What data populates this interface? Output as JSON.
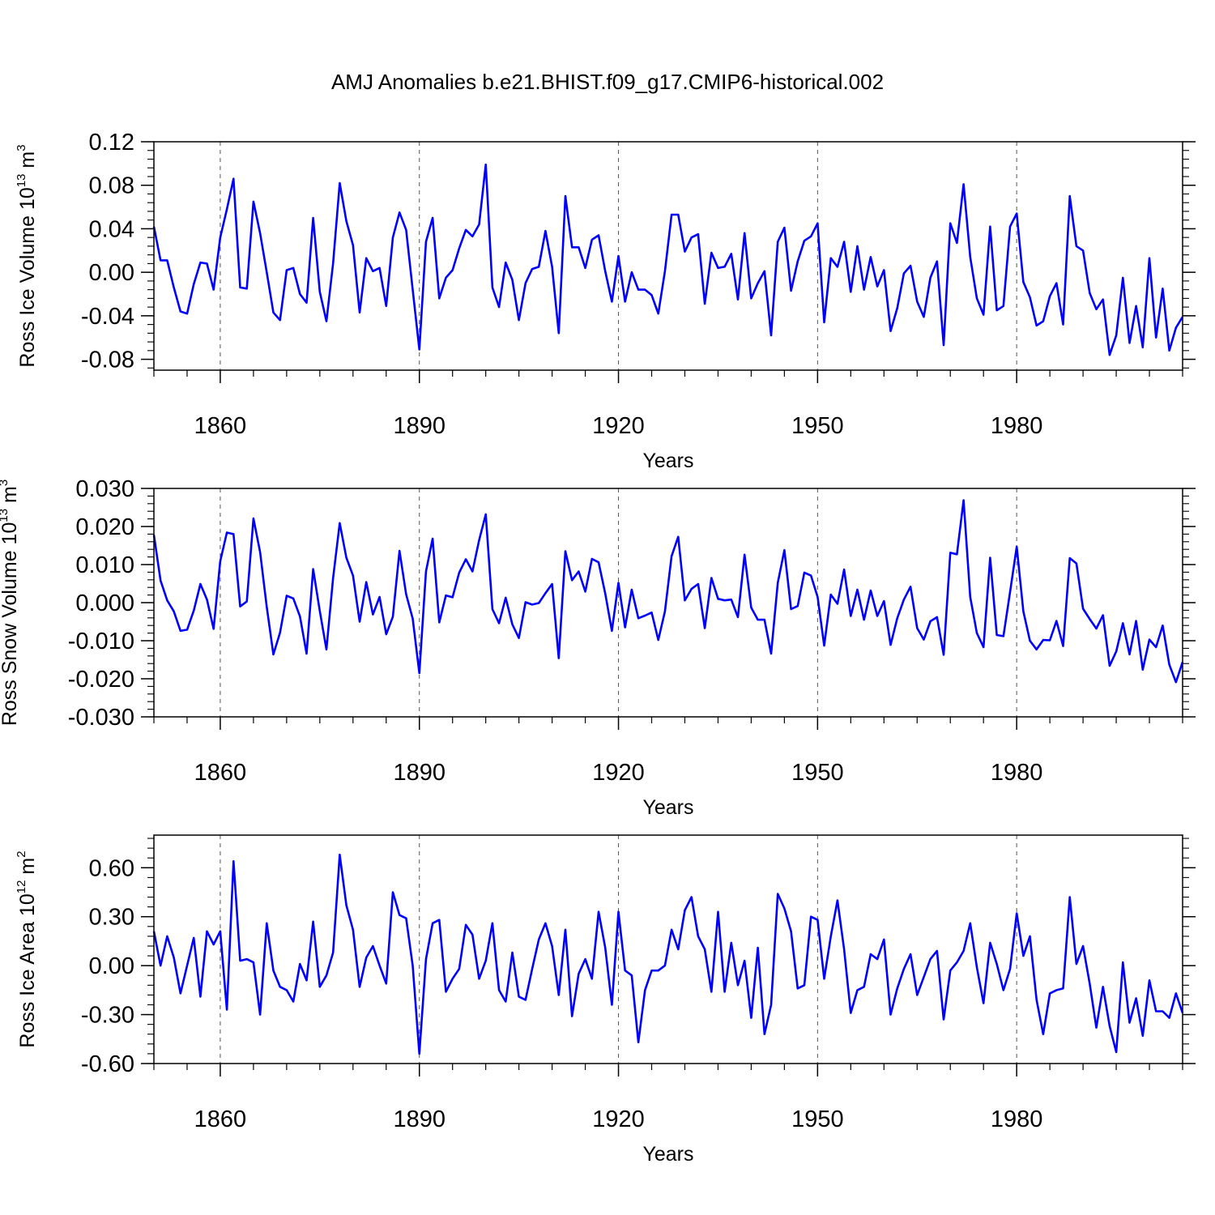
{
  "title": "AMJ Anomalies b.e21.BHIST.f09_g17.CMIP6-historical.002",
  "line_color": "#0000ff",
  "chart_data": [
    {
      "type": "line",
      "title": "AMJ Anomalies b.e21.BHIST.f09_g17.CMIP6-historical.002",
      "xlabel": "Years",
      "ylabel": "Ross Ice Volume",
      "yunit_base": "10",
      "yunit_exp": "13",
      "yunit_sym": "m",
      "yunit_pow": "3",
      "xlim": [
        1850,
        2005
      ],
      "ylim": [
        -0.09,
        0.12
      ],
      "xticks": [
        1860,
        1890,
        1920,
        1950,
        1980
      ],
      "xtick_labels": [
        "1860",
        "1890",
        "1920",
        "1950",
        "1980"
      ],
      "yticks": [
        -0.08,
        -0.04,
        0.0,
        0.04,
        0.08,
        0.12
      ],
      "ytick_labels": [
        "-0.08",
        "-0.04",
        "0.00",
        "0.04",
        "0.08",
        "0.12"
      ],
      "x_start": 1850,
      "values": [
        0.042,
        0.011,
        0.011,
        -0.014,
        -0.036,
        -0.038,
        -0.011,
        0.009,
        0.008,
        -0.016,
        0.032,
        0.058,
        0.086,
        -0.014,
        -0.015,
        0.065,
        0.036,
        0.0,
        -0.037,
        -0.044,
        0.002,
        0.004,
        -0.02,
        -0.028,
        0.05,
        -0.018,
        -0.045,
        0.008,
        0.082,
        0.047,
        0.025,
        -0.037,
        0.013,
        0.001,
        0.004,
        -0.031,
        0.032,
        0.055,
        0.039,
        -0.016,
        -0.071,
        0.028,
        0.05,
        -0.024,
        -0.005,
        0.002,
        0.022,
        0.039,
        0.033,
        0.044,
        0.099,
        -0.014,
        -0.032,
        0.009,
        -0.007,
        -0.044,
        -0.01,
        0.003,
        0.005,
        0.038,
        0.005,
        -0.056,
        0.07,
        0.023,
        0.023,
        0.004,
        0.03,
        0.034,
        0.001,
        -0.027,
        0.015,
        -0.027,
        0.0,
        -0.016,
        -0.016,
        -0.021,
        -0.038,
        0.001,
        0.053,
        0.053,
        0.019,
        0.032,
        0.035,
        -0.029,
        0.018,
        0.004,
        0.005,
        0.017,
        -0.025,
        0.036,
        -0.024,
        -0.01,
        0.001,
        -0.058,
        0.028,
        0.041,
        -0.017,
        0.01,
        0.029,
        0.033,
        0.045,
        -0.046,
        0.013,
        0.005,
        0.028,
        -0.018,
        0.024,
        -0.016,
        0.014,
        -0.013,
        0.002,
        -0.054,
        -0.033,
        -0.001,
        0.006,
        -0.027,
        -0.041,
        -0.005,
        0.01,
        -0.067,
        0.045,
        0.027,
        0.081,
        0.014,
        -0.024,
        -0.039,
        0.042,
        -0.035,
        -0.031,
        0.042,
        0.054,
        -0.009,
        -0.023,
        -0.049,
        -0.045,
        -0.022,
        -0.01,
        -0.048,
        0.07,
        0.024,
        0.02,
        -0.019,
        -0.034,
        -0.025,
        -0.076,
        -0.058,
        -0.005,
        -0.065,
        -0.031,
        -0.069,
        0.013,
        -0.06,
        -0.015,
        -0.072,
        -0.051,
        -0.041
      ]
    },
    {
      "type": "line",
      "xlabel": "Years",
      "ylabel": "Ross Snow Volume",
      "yunit_base": "10",
      "yunit_exp": "13",
      "yunit_sym": "m",
      "yunit_pow": "3",
      "xlim": [
        1850,
        2005
      ],
      "ylim": [
        -0.03,
        0.03
      ],
      "xticks": [
        1860,
        1890,
        1920,
        1950,
        1980
      ],
      "xtick_labels": [
        "1860",
        "1890",
        "1920",
        "1950",
        "1980"
      ],
      "yticks": [
        -0.03,
        -0.02,
        -0.01,
        0.0,
        0.01,
        0.02,
        0.03
      ],
      "ytick_labels": [
        "-0.030",
        "-0.020",
        "-0.010",
        "0.000",
        "0.010",
        "0.020",
        "0.030"
      ],
      "x_start": 1850,
      "values": [
        0.0178,
        0.0058,
        0.0006,
        -0.0023,
        -0.0074,
        -0.0071,
        -0.0021,
        0.0049,
        0.0008,
        -0.0069,
        0.0109,
        0.0184,
        0.018,
        -0.001,
        0.0003,
        0.0221,
        0.0133,
        -0.0011,
        -0.0136,
        -0.0079,
        0.0018,
        0.0011,
        -0.0036,
        -0.0134,
        0.0088,
        -0.0022,
        -0.0123,
        0.0064,
        0.0209,
        0.0118,
        0.0071,
        -0.005,
        0.0054,
        -0.0031,
        0.0015,
        -0.0083,
        -0.0037,
        0.0136,
        0.0022,
        -0.0042,
        -0.0185,
        0.0082,
        0.0168,
        -0.0052,
        0.0019,
        0.0014,
        0.0079,
        0.0114,
        0.0082,
        0.0164,
        0.0232,
        -0.0017,
        -0.0054,
        0.0013,
        -0.0057,
        -0.0093,
        0.0001,
        -0.0005,
        -0.0001,
        0.0025,
        0.0049,
        -0.0146,
        0.0135,
        0.0059,
        0.0082,
        0.0029,
        0.0115,
        0.0106,
        0.0024,
        -0.0074,
        0.0052,
        -0.0065,
        0.0034,
        -0.0041,
        -0.0034,
        -0.0026,
        -0.0098,
        -0.0023,
        0.0122,
        0.0173,
        0.0006,
        0.0036,
        0.0049,
        -0.0067,
        0.0065,
        0.001,
        0.0006,
        0.0008,
        -0.0038,
        0.0126,
        -0.0013,
        -0.0045,
        -0.0045,
        -0.0134,
        0.0052,
        0.0138,
        -0.0017,
        -0.0009,
        0.0079,
        0.0071,
        0.0015,
        -0.0113,
        0.0021,
        -0.0003,
        0.0087,
        -0.0035,
        0.0034,
        -0.0045,
        0.0032,
        -0.0035,
        0.0004,
        -0.0111,
        -0.0041,
        0.0008,
        0.0042,
        -0.0067,
        -0.0097,
        -0.0049,
        -0.0038,
        -0.0137,
        0.0131,
        0.0127,
        0.0269,
        0.0015,
        -0.008,
        -0.0117,
        0.0118,
        -0.0085,
        -0.0088,
        0.0028,
        0.0147,
        -0.0023,
        -0.01,
        -0.0123,
        -0.0098,
        -0.0099,
        -0.0048,
        -0.0114,
        0.0117,
        0.0103,
        -0.0016,
        -0.0043,
        -0.0068,
        -0.0033,
        -0.0166,
        -0.0128,
        -0.0054,
        -0.0136,
        -0.0048,
        -0.0176,
        -0.0097,
        -0.0117,
        -0.006,
        -0.0163,
        -0.0209,
        -0.0156
      ]
    },
    {
      "type": "line",
      "xlabel": "Years",
      "ylabel": "Ross Ice Area",
      "yunit_base": "10",
      "yunit_exp": "12",
      "yunit_sym": "m",
      "yunit_pow": "2",
      "xlim": [
        1850,
        2005
      ],
      "ylim": [
        -0.6,
        0.8
      ],
      "xticks": [
        1860,
        1890,
        1920,
        1950,
        1980
      ],
      "xtick_labels": [
        "1860",
        "1890",
        "1920",
        "1950",
        "1980"
      ],
      "yticks": [
        -0.6,
        -0.3,
        0.0,
        0.3,
        0.6
      ],
      "ytick_labels": [
        "-0.60",
        "-0.30",
        "0.00",
        "0.30",
        "0.60"
      ],
      "x_start": 1850,
      "values": [
        0.21,
        0.0,
        0.18,
        0.05,
        -0.17,
        0.0,
        0.17,
        -0.19,
        0.21,
        0.13,
        0.21,
        -0.27,
        0.64,
        0.03,
        0.04,
        0.02,
        -0.3,
        0.26,
        -0.03,
        -0.13,
        -0.15,
        -0.22,
        0.01,
        -0.09,
        0.27,
        -0.13,
        -0.06,
        0.08,
        0.68,
        0.37,
        0.22,
        -0.13,
        0.05,
        0.12,
        0.0,
        -0.11,
        0.45,
        0.31,
        0.29,
        0.0,
        -0.54,
        0.04,
        0.26,
        0.28,
        -0.16,
        -0.08,
        -0.02,
        0.25,
        0.19,
        -0.08,
        0.03,
        0.26,
        -0.15,
        -0.22,
        0.08,
        -0.19,
        -0.21,
        -0.02,
        0.16,
        0.26,
        0.12,
        -0.18,
        0.22,
        -0.31,
        -0.05,
        0.04,
        -0.08,
        0.33,
        0.11,
        -0.24,
        0.33,
        -0.03,
        -0.06,
        -0.47,
        -0.15,
        -0.03,
        -0.03,
        0.0,
        0.22,
        0.1,
        0.34,
        0.42,
        0.18,
        0.1,
        -0.16,
        0.33,
        -0.16,
        0.14,
        -0.12,
        0.03,
        -0.32,
        0.11,
        -0.42,
        -0.24,
        0.44,
        0.35,
        0.21,
        -0.14,
        -0.12,
        0.3,
        0.28,
        -0.08,
        0.18,
        0.4,
        0.1,
        -0.29,
        -0.15,
        -0.13,
        0.07,
        0.04,
        0.16,
        -0.3,
        -0.14,
        -0.02,
        0.07,
        -0.18,
        -0.07,
        0.04,
        0.09,
        -0.33,
        -0.03,
        0.02,
        0.09,
        0.26,
        -0.01,
        -0.23,
        0.14,
        0.01,
        -0.15,
        -0.02,
        0.32,
        0.06,
        0.18,
        -0.21,
        -0.42,
        -0.17,
        -0.15,
        -0.14,
        0.42,
        0.01,
        0.12,
        -0.11,
        -0.38,
        -0.13,
        -0.37,
        -0.53,
        0.02,
        -0.35,
        -0.2,
        -0.43,
        -0.09,
        -0.28,
        -0.28,
        -0.32,
        -0.17,
        -0.29
      ]
    }
  ]
}
